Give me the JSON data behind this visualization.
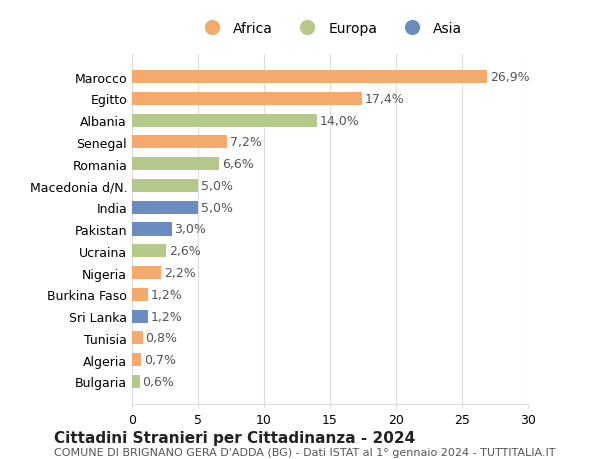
{
  "countries": [
    "Marocco",
    "Egitto",
    "Albania",
    "Senegal",
    "Romania",
    "Macedonia d/N.",
    "India",
    "Pakistan",
    "Ucraina",
    "Nigeria",
    "Burkina Faso",
    "Sri Lanka",
    "Tunisia",
    "Algeria",
    "Bulgaria"
  ],
  "values": [
    26.9,
    17.4,
    14.0,
    7.2,
    6.6,
    5.0,
    5.0,
    3.0,
    2.6,
    2.2,
    1.2,
    1.2,
    0.8,
    0.7,
    0.6
  ],
  "labels": [
    "26,9%",
    "17,4%",
    "14,0%",
    "7,2%",
    "6,6%",
    "5,0%",
    "5,0%",
    "3,0%",
    "2,6%",
    "2,2%",
    "1,2%",
    "1,2%",
    "0,8%",
    "0,7%",
    "0,6%"
  ],
  "continents": [
    "Africa",
    "Africa",
    "Europa",
    "Africa",
    "Europa",
    "Europa",
    "Asia",
    "Asia",
    "Europa",
    "Africa",
    "Africa",
    "Asia",
    "Africa",
    "Africa",
    "Europa"
  ],
  "continent_colors": {
    "Africa": "#F4A96D",
    "Europa": "#B5C98A",
    "Asia": "#6B8CBE"
  },
  "legend_order": [
    "Africa",
    "Europa",
    "Asia"
  ],
  "xlim": [
    0,
    30
  ],
  "xticks": [
    0,
    5,
    10,
    15,
    20,
    25,
    30
  ],
  "title1": "Cittadini Stranieri per Cittadinanza - 2024",
  "title2": "COMUNE DI BRIGNANO GERA D'ADDA (BG) - Dati ISTAT al 1° gennaio 2024 - TUTTITALIA.IT",
  "background_color": "#ffffff",
  "grid_color": "#dddddd",
  "bar_height": 0.6,
  "label_fontsize": 9,
  "tick_fontsize": 9,
  "country_fontsize": 9,
  "title1_fontsize": 11,
  "title2_fontsize": 8
}
